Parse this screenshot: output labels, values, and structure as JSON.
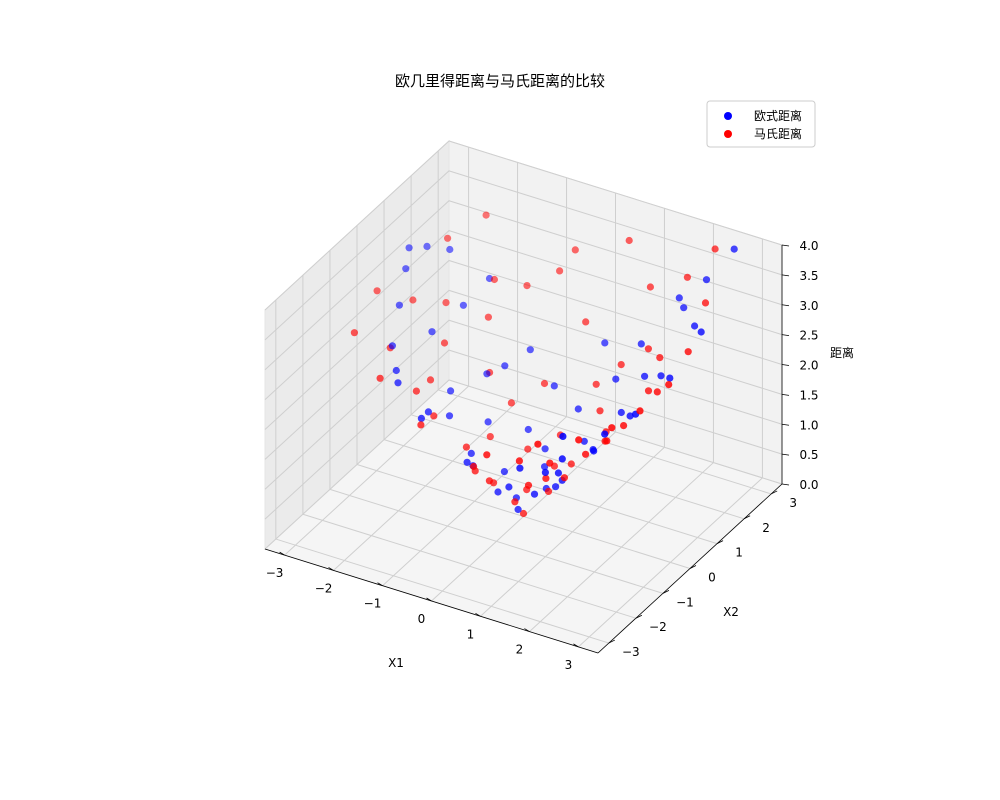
{
  "chart_data": {
    "type": "scatter",
    "projection": "3d",
    "title": "欧几里得距离与马氏距离的比较",
    "xlabel": "X1",
    "ylabel": "X2",
    "zlabel": "距离",
    "xlim": [
      -3.4,
      3.4
    ],
    "ylim": [
      -3.4,
      3.4
    ],
    "zlim": [
      0,
      4.0
    ],
    "x_ticks": [
      "−3",
      "−2",
      "−1",
      "0",
      "1",
      "2",
      "3"
    ],
    "y_ticks": [
      "−3",
      "−2",
      "−1",
      "0",
      "1",
      "2",
      "3"
    ],
    "z_ticks": [
      "0.0",
      "0.5",
      "1.0",
      "1.5",
      "2.0",
      "2.5",
      "3.0",
      "3.5",
      "4.0"
    ],
    "grid": true,
    "legend": "top-right",
    "series": [
      {
        "name": "欧式距离",
        "color": "#0000ff",
        "points": [
          [
            -3.0,
            1.2,
            3.23
          ],
          [
            -2.9,
            0.9,
            3.03
          ],
          [
            -2.8,
            1.5,
            3.18
          ],
          [
            -2.7,
            0.3,
            2.72
          ],
          [
            -2.5,
            1.8,
            3.08
          ],
          [
            -2.4,
            -0.5,
            2.45
          ],
          [
            -2.2,
            0.6,
            2.28
          ],
          [
            -2.0,
            1.4,
            2.44
          ],
          [
            -1.9,
            -1.2,
            2.25
          ],
          [
            -1.8,
            2.0,
            2.69
          ],
          [
            -1.6,
            0.2,
            1.61
          ],
          [
            -1.5,
            -0.8,
            1.7
          ],
          [
            -1.3,
            1.0,
            1.64
          ],
          [
            -1.2,
            -1.6,
            2.0
          ],
          [
            -1.0,
            0.5,
            1.12
          ],
          [
            -0.9,
            -0.3,
            0.95
          ],
          [
            -0.8,
            1.7,
            1.88
          ],
          [
            -0.6,
            -1.0,
            1.17
          ],
          [
            -0.5,
            0.2,
            0.54
          ],
          [
            -0.4,
            0.9,
            0.98
          ],
          [
            -0.3,
            -0.4,
            0.5
          ],
          [
            -0.2,
            0.1,
            0.22
          ],
          [
            0.0,
            -0.2,
            0.2
          ],
          [
            0.1,
            0.6,
            0.61
          ],
          [
            0.2,
            -0.9,
            0.92
          ],
          [
            0.3,
            0.3,
            0.42
          ],
          [
            0.4,
            1.3,
            1.36
          ],
          [
            0.5,
            -0.5,
            0.71
          ],
          [
            0.6,
            0.1,
            0.61
          ],
          [
            0.7,
            -1.4,
            1.57
          ],
          [
            0.8,
            0.8,
            1.13
          ],
          [
            0.9,
            -0.2,
            0.92
          ],
          [
            1.0,
            1.6,
            1.89
          ],
          [
            1.1,
            -0.7,
            1.3
          ],
          [
            1.2,
            0.4,
            1.26
          ],
          [
            1.3,
            2.0,
            2.39
          ],
          [
            1.4,
            -1.1,
            1.78
          ],
          [
            1.5,
            0.9,
            1.75
          ],
          [
            1.6,
            -0.3,
            1.63
          ],
          [
            1.7,
            1.4,
            2.2
          ],
          [
            1.8,
            -1.8,
            2.55
          ],
          [
            1.9,
            0.5,
            1.96
          ],
          [
            2.0,
            2.3,
            3.05
          ],
          [
            2.1,
            -0.8,
            2.25
          ],
          [
            2.2,
            1.1,
            2.46
          ],
          [
            2.3,
            2.6,
            3.47
          ],
          [
            2.4,
            -0.2,
            2.41
          ],
          [
            2.5,
            1.8,
            3.08
          ],
          [
            2.6,
            0.7,
            2.69
          ],
          [
            2.7,
            2.9,
            3.96
          ],
          [
            2.8,
            1.5,
            3.18
          ],
          [
            -0.7,
            -0.6,
            0.92
          ],
          [
            0.0,
            0.8,
            0.8
          ],
          [
            -1.4,
            -0.2,
            1.41
          ],
          [
            1.0,
            -1.0,
            1.41
          ],
          [
            -0.2,
            1.5,
            1.51
          ],
          [
            0.5,
            2.1,
            2.16
          ],
          [
            -2.1,
            -0.9,
            2.28
          ],
          [
            1.8,
            2.5,
            3.08
          ],
          [
            -1.1,
            1.3,
            1.7
          ]
        ]
      },
      {
        "name": "马氏距离",
        "color": "#ff0000",
        "points": [
          [
            -3.1,
            0.2,
            2.9
          ],
          [
            -2.9,
            -1.0,
            2.75
          ],
          [
            -2.7,
            0.8,
            2.6
          ],
          [
            -2.5,
            -0.4,
            2.35
          ],
          [
            -2.3,
            1.3,
            2.45
          ],
          [
            -2.1,
            -1.5,
            2.4
          ],
          [
            -1.9,
            0.0,
            1.8
          ],
          [
            -1.7,
            2.0,
            2.7
          ],
          [
            -1.5,
            -0.6,
            1.55
          ],
          [
            -1.3,
            1.1,
            1.62
          ],
          [
            -1.1,
            -1.8,
            2.0
          ],
          [
            -0.9,
            0.4,
            0.94
          ],
          [
            -0.7,
            2.6,
            2.85
          ],
          [
            -0.6,
            -0.7,
            0.9
          ],
          [
            -0.4,
            1.5,
            1.5
          ],
          [
            -0.3,
            -1.3,
            1.3
          ],
          [
            -0.1,
            0.3,
            0.3
          ],
          [
            0.0,
            2.3,
            2.3
          ],
          [
            0.1,
            -0.5,
            0.48
          ],
          [
            0.2,
            1.0,
            1.0
          ],
          [
            0.3,
            -1.9,
            1.9
          ],
          [
            0.4,
            0.2,
            0.44
          ],
          [
            0.5,
            3.0,
            3.5
          ],
          [
            0.6,
            -0.9,
            1.05
          ],
          [
            0.7,
            0.5,
            0.85
          ],
          [
            0.8,
            -1.6,
            1.8
          ],
          [
            0.9,
            1.2,
            1.5
          ],
          [
            1.0,
            -0.3,
            1.03
          ],
          [
            1.1,
            2.7,
            3.0
          ],
          [
            1.2,
            -1.2,
            1.7
          ],
          [
            1.3,
            0.7,
            1.46
          ],
          [
            1.4,
            -2.0,
            2.4
          ],
          [
            1.5,
            1.9,
            2.4
          ],
          [
            1.6,
            -0.6,
            1.7
          ],
          [
            1.7,
            0.0,
            1.7
          ],
          [
            1.8,
            2.8,
            3.3
          ],
          [
            1.9,
            -1.4,
            2.35
          ],
          [
            2.0,
            1.0,
            2.2
          ],
          [
            2.1,
            -0.1,
            2.1
          ],
          [
            2.2,
            3.1,
            3.75
          ],
          [
            2.3,
            -0.9,
            2.45
          ],
          [
            2.4,
            0.6,
            2.45
          ],
          [
            2.5,
            2.2,
            3.3
          ],
          [
            2.6,
            -0.4,
            2.6
          ],
          [
            2.8,
            0.3,
            2.8
          ],
          [
            -0.5,
            -0.2,
            0.52
          ],
          [
            0.0,
            0.0,
            0.05
          ],
          [
            -1.0,
            -0.3,
            1.03
          ],
          [
            0.3,
            0.6,
            0.67
          ],
          [
            -0.2,
            -0.9,
            0.92
          ],
          [
            -1.6,
            1.6,
            2.26
          ],
          [
            1.0,
            1.8,
            2.05
          ],
          [
            -2.6,
            1.9,
            3.2
          ],
          [
            -2.0,
            0.7,
            2.1
          ],
          [
            0.6,
            1.6,
            1.7
          ],
          [
            -0.8,
            1.0,
            1.28
          ],
          [
            1.5,
            0.3,
            1.52
          ],
          [
            -1.2,
            2.3,
            2.6
          ],
          [
            0.9,
            -0.8,
            1.2
          ],
          [
            -0.3,
            0.7,
            0.76
          ],
          [
            -2.2,
            2.6,
            3.4
          ],
          [
            -1.8,
            -0.7,
            1.93
          ],
          [
            1.9,
            1.6,
            2.48
          ],
          [
            -0.6,
            3.0,
            3.06
          ],
          [
            2.7,
            1.2,
            2.95
          ]
        ]
      }
    ]
  }
}
